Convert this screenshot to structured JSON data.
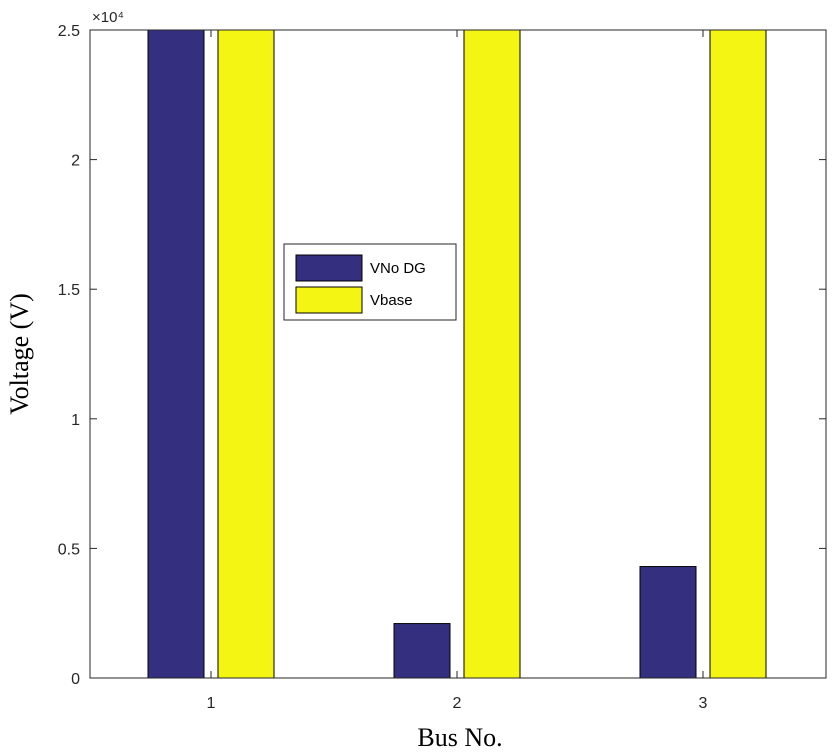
{
  "chart_data": {
    "type": "bar",
    "categories": [
      "1",
      "2",
      "3"
    ],
    "series": [
      {
        "name": "VNo DG",
        "color": "#34307f",
        "values": [
          25000,
          2100,
          4300
        ]
      },
      {
        "name": "Vbase",
        "color": "#f5f513",
        "values": [
          25000,
          25000,
          25000
        ]
      }
    ],
    "xlabel": "Bus No.",
    "ylabel": "Voltage (V)",
    "ylim": [
      0,
      25000
    ],
    "y_scale_exponent": "×10⁴",
    "y_ticks": [
      {
        "value": 0,
        "label": "0"
      },
      {
        "value": 5000,
        "label": "0.5"
      },
      {
        "value": 10000,
        "label": "1"
      },
      {
        "value": 15000,
        "label": "1.5"
      },
      {
        "value": 20000,
        "label": "2"
      },
      {
        "value": 25000,
        "label": "2.5"
      }
    ],
    "grid": false,
    "legend_position": "upper-left-center"
  }
}
